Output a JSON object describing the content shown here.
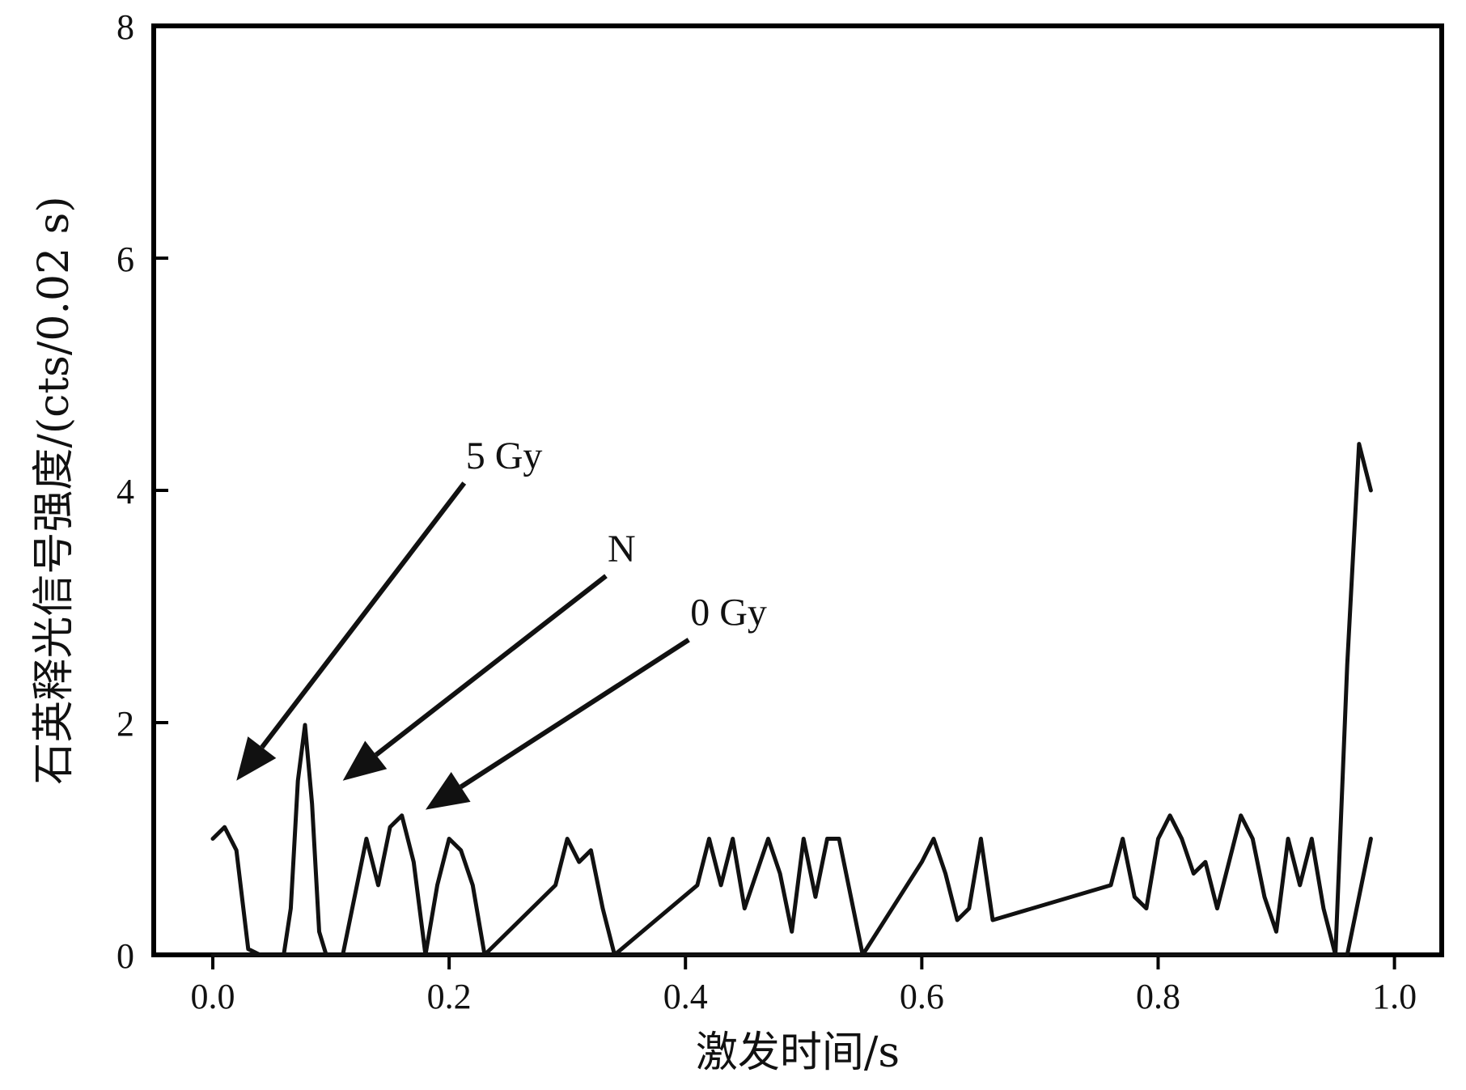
{
  "chart_data": {
    "type": "line",
    "title": "",
    "xlabel": "激发时间/s",
    "ylabel": "石英释光信号强度/(cts/0.02 s)",
    "xlim": [
      -0.05,
      1.04
    ],
    "ylim": [
      0,
      8
    ],
    "xticks": [
      0.0,
      0.2,
      0.4,
      0.6,
      0.8,
      1.0
    ],
    "xtick_labels": [
      "0.0",
      "0.2",
      "0.4",
      "0.6",
      "0.8",
      "1.0"
    ],
    "yticks": [
      0,
      2,
      4,
      6,
      8
    ],
    "ytick_labels": [
      "0",
      "2",
      "4",
      "6",
      "8"
    ],
    "grid": false,
    "legend": "none",
    "colors": {
      "line": "#111111",
      "axis": "#000000"
    },
    "series": [
      {
        "x": [
          0.0,
          0.01,
          0.02,
          0.03,
          0.04,
          0.05,
          0.06,
          0.066,
          0.072,
          0.078,
          0.084,
          0.09,
          0.096,
          0.1,
          0.11,
          0.12,
          0.13,
          0.14,
          0.15,
          0.16,
          0.17,
          0.18,
          0.19,
          0.2,
          0.21,
          0.22,
          0.23,
          0.24,
          0.25,
          0.26,
          0.27,
          0.28,
          0.29,
          0.3,
          0.31,
          0.32,
          0.33,
          0.34,
          0.35,
          0.36,
          0.37,
          0.38,
          0.39,
          0.4,
          0.41,
          0.42,
          0.43,
          0.44,
          0.45,
          0.46,
          0.47,
          0.48,
          0.49,
          0.5,
          0.51,
          0.52,
          0.53,
          0.54,
          0.55,
          0.56,
          0.57,
          0.58,
          0.59,
          0.6,
          0.61,
          0.62,
          0.63,
          0.64,
          0.65,
          0.66,
          0.67,
          0.68,
          0.69,
          0.7,
          0.71,
          0.72,
          0.73,
          0.74,
          0.75,
          0.76,
          0.77,
          0.78,
          0.79,
          0.8,
          0.81,
          0.82,
          0.83,
          0.84,
          0.85,
          0.86,
          0.87,
          0.88,
          0.89,
          0.9,
          0.91,
          0.92,
          0.93,
          0.94,
          0.95,
          0.96,
          0.97,
          0.98
        ],
        "values": [
          1.0,
          1.1,
          0.9,
          0.05,
          0.0,
          0.0,
          0.0,
          0.4,
          1.5,
          1.98,
          1.3,
          0.2,
          0.0,
          0.0,
          0.0,
          0.0,
          0.0,
          0.0,
          0.0,
          0.0,
          0.0,
          0.0,
          0.0,
          0.0,
          0.0,
          0.0,
          0.0,
          0.0,
          0.0,
          0.0,
          0.0,
          0.0,
          0.0,
          0.0,
          0.0,
          0.0,
          0.0,
          0.0,
          0.0,
          0.0,
          0.0,
          0.0,
          0.0,
          0.0,
          0.0,
          0.0,
          0.0,
          0.0,
          0.0,
          0.0,
          0.0,
          0.0,
          0.0,
          0.0,
          0.0,
          0.0,
          0.0,
          0.0,
          0.0,
          0.0,
          0.0,
          0.0,
          0.0,
          0.0,
          0.0,
          0.0,
          0.0,
          0.0,
          0.0,
          0.0,
          0.0,
          0.0,
          0.0,
          0.0,
          0.0,
          0.0,
          0.0,
          0.0,
          0.0,
          0.0,
          0.0,
          0.0,
          0.0,
          0.0,
          0.0,
          0.0,
          0.0,
          0.0,
          0.0,
          0.0,
          0.0,
          0.0,
          0.0,
          0.0,
          0.0,
          0.0,
          0.0,
          0.0,
          0.0,
          2.5,
          4.4,
          4.0
        ]
      },
      {
        "x": [
          0.0,
          0.1,
          0.11,
          0.12,
          0.13,
          0.14,
          0.15,
          0.16,
          0.17,
          0.18,
          0.19,
          0.2,
          0.21,
          0.22,
          0.23,
          0.29,
          0.3,
          0.31,
          0.32,
          0.33,
          0.34,
          0.41,
          0.42,
          0.43,
          0.44,
          0.45,
          0.46,
          0.47,
          0.48,
          0.49,
          0.5,
          0.51,
          0.52,
          0.53,
          0.54,
          0.55,
          0.6,
          0.61,
          0.62,
          0.63,
          0.64,
          0.65,
          0.66,
          0.76,
          0.77,
          0.78,
          0.79,
          0.8,
          0.81,
          0.82,
          0.83,
          0.84,
          0.85,
          0.86,
          0.87,
          0.88,
          0.89,
          0.9,
          0.91,
          0.92,
          0.93,
          0.94,
          0.95,
          0.96,
          0.97,
          0.98
        ],
        "values": [
          0.0,
          0.0,
          0.0,
          0.5,
          1.0,
          0.6,
          1.1,
          1.2,
          0.8,
          0.0,
          0.6,
          1.0,
          0.9,
          0.6,
          0.0,
          0.6,
          1.0,
          0.8,
          0.9,
          0.4,
          0.0,
          0.6,
          1.0,
          0.6,
          1.0,
          0.4,
          0.7,
          1.0,
          0.7,
          0.2,
          1.0,
          0.5,
          1.0,
          1.0,
          0.5,
          0.0,
          0.8,
          1.0,
          0.7,
          0.3,
          0.4,
          1.0,
          0.3,
          0.6,
          1.0,
          0.5,
          0.4,
          1.0,
          1.2,
          1.0,
          0.7,
          0.8,
          0.4,
          0.8,
          1.2,
          1.0,
          0.5,
          0.2,
          1.0,
          0.6,
          1.0,
          0.4,
          0.0,
          0.0,
          0.5,
          1.0
        ]
      }
    ],
    "annotations": [
      {
        "text": "5 Gy",
        "x": 0.21,
        "y": 4.3,
        "arrow_to": [
          0.02,
          1.5
        ]
      },
      {
        "text": "N",
        "x": 0.33,
        "y": 3.5,
        "arrow_to": [
          0.11,
          1.5
        ]
      },
      {
        "text": "0 Gy",
        "x": 0.4,
        "y": 2.95,
        "arrow_to": [
          0.18,
          1.25
        ]
      }
    ]
  }
}
